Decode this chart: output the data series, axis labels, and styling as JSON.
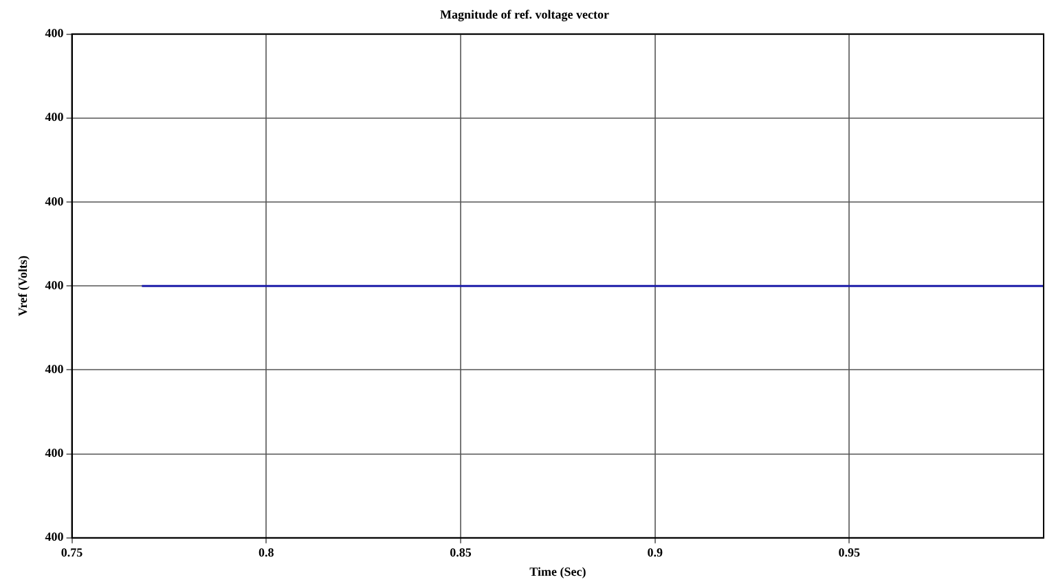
{
  "chart_data": {
    "type": "line",
    "title": "Magnitude of ref. voltage vector",
    "xlabel": "Time (Sec)",
    "ylabel": "Vref (Volts)",
    "x": [
      0.768,
      1.0
    ],
    "series": [
      {
        "color": "#1c1ca8",
        "values": [
          400,
          400
        ]
      }
    ],
    "xlim": [
      0.75,
      1.0
    ],
    "xticks": [
      0.75,
      0.8,
      0.85,
      0.9,
      0.95
    ],
    "ylim": [
      399.97,
      400.03
    ],
    "yticks": [
      {
        "value": 399.97,
        "label": "400"
      },
      {
        "value": 399.98,
        "label": "400"
      },
      {
        "value": 399.99,
        "label": "400"
      },
      {
        "value": 400,
        "label": "400"
      },
      {
        "value": 400.01,
        "label": "400"
      },
      {
        "value": 400.02,
        "label": "400"
      },
      {
        "value": 400.03,
        "label": "400"
      }
    ],
    "grid": true,
    "legend": false,
    "marker": "none",
    "line_style": "solid"
  }
}
